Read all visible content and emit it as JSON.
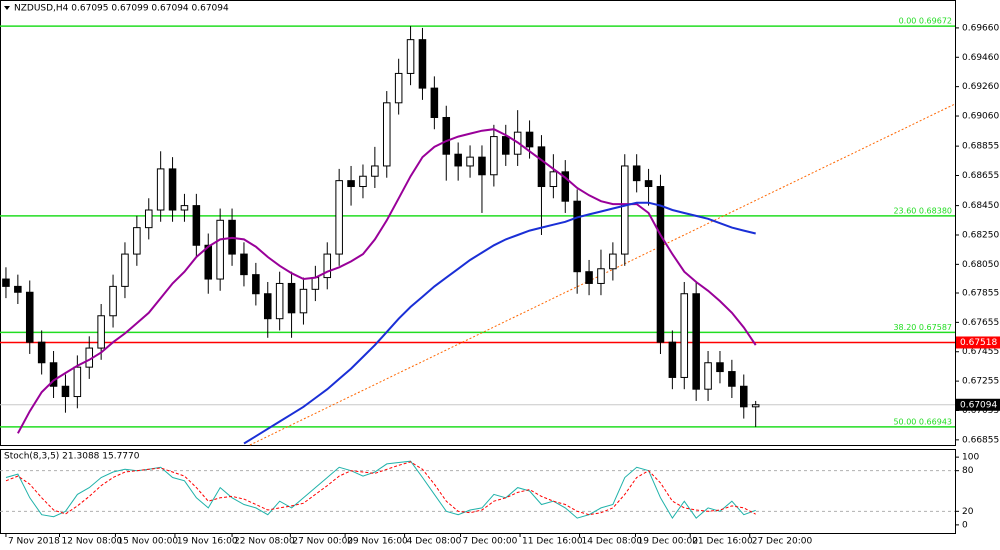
{
  "chart_data": {
    "type": "candlestick",
    "title": "NZDUSD,H4 0.67095 0.67099 0.67094 0.67094",
    "open": [
      0.6795,
      0.679,
      0.6786,
      0.6752,
      0.6738,
      0.6722,
      0.6715,
      0.6735,
      0.6748,
      0.677,
      0.679,
      0.6812,
      0.683,
      0.6842,
      0.687,
      0.6842,
      0.6845,
      0.6818,
      0.6795,
      0.6835,
      0.6812,
      0.6798,
      0.6785,
      0.6768,
      0.6792,
      0.6772,
      0.6788,
      0.6796,
      0.6812,
      0.6862,
      0.6858,
      0.6865,
      0.6872,
      0.6915,
      0.6935,
      0.6958,
      0.6925,
      0.6905,
      0.688,
      0.6872,
      0.6878,
      0.6866,
      0.6892,
      0.688,
      0.6895,
      0.6885,
      0.6858,
      0.6868,
      0.6848,
      0.68,
      0.6792,
      0.6802,
      0.6812,
      0.6872,
      0.6862,
      0.6858,
      0.6752,
      0.6728,
      0.6785,
      0.672,
      0.6738,
      0.6732,
      0.6722,
      0.6708
    ],
    "high": [
      0.6803,
      0.6798,
      0.6794,
      0.676,
      0.6746,
      0.673,
      0.6743,
      0.6756,
      0.6778,
      0.6798,
      0.682,
      0.6838,
      0.685,
      0.6882,
      0.6878,
      0.6853,
      0.6853,
      0.6826,
      0.6843,
      0.6843,
      0.682,
      0.6806,
      0.6793,
      0.68,
      0.68,
      0.6796,
      0.6804,
      0.682,
      0.687,
      0.6872,
      0.6873,
      0.6885,
      0.6923,
      0.6945,
      0.69672,
      0.6966,
      0.6933,
      0.6913,
      0.6888,
      0.6886,
      0.6886,
      0.69,
      0.69,
      0.691,
      0.6903,
      0.6893,
      0.688,
      0.6876,
      0.6856,
      0.6808,
      0.6815,
      0.682,
      0.688,
      0.688,
      0.687,
      0.6866,
      0.676,
      0.6793,
      0.6793,
      0.6746,
      0.6746,
      0.674,
      0.673,
      0.6712
    ],
    "low": [
      0.6782,
      0.6778,
      0.6744,
      0.673,
      0.6714,
      0.6704,
      0.6707,
      0.6727,
      0.674,
      0.6762,
      0.6782,
      0.6804,
      0.6822,
      0.6834,
      0.6834,
      0.6834,
      0.681,
      0.6785,
      0.6787,
      0.6804,
      0.679,
      0.6777,
      0.6755,
      0.676,
      0.6755,
      0.6764,
      0.678,
      0.6788,
      0.6804,
      0.6845,
      0.685,
      0.6857,
      0.6864,
      0.6907,
      0.6927,
      0.6917,
      0.6897,
      0.6862,
      0.6862,
      0.6864,
      0.684,
      0.6858,
      0.6872,
      0.6872,
      0.6877,
      0.6825,
      0.685,
      0.684,
      0.6785,
      0.6784,
      0.6784,
      0.6794,
      0.6804,
      0.6854,
      0.6845,
      0.6744,
      0.672,
      0.672,
      0.6712,
      0.6712,
      0.6724,
      0.6714,
      0.67,
      0.66943
    ],
    "close": [
      0.679,
      0.6786,
      0.6752,
      0.6738,
      0.6722,
      0.6715,
      0.6735,
      0.6748,
      0.677,
      0.679,
      0.6812,
      0.683,
      0.6842,
      0.687,
      0.6842,
      0.6845,
      0.6818,
      0.6795,
      0.6835,
      0.6812,
      0.6798,
      0.6785,
      0.6768,
      0.6792,
      0.6772,
      0.6788,
      0.6796,
      0.6812,
      0.6862,
      0.6858,
      0.6865,
      0.6872,
      0.6915,
      0.6935,
      0.6958,
      0.6925,
      0.6905,
      0.688,
      0.6872,
      0.6878,
      0.6866,
      0.6892,
      0.688,
      0.6895,
      0.6885,
      0.6858,
      0.6868,
      0.6848,
      0.68,
      0.6792,
      0.6802,
      0.6812,
      0.6872,
      0.6862,
      0.6858,
      0.6752,
      0.6728,
      0.6785,
      0.672,
      0.6738,
      0.6732,
      0.6722,
      0.6708,
      0.67094
    ],
    "up_color": "#ffffff",
    "down_color": "#000000",
    "xlim": [
      -0.5,
      79.75
    ],
    "xticks": [
      {
        "value": 0,
        "label": "7 Nov 2018"
      },
      {
        "value": 4.5,
        "label": "12 Nov 08:00"
      },
      {
        "value": 9.2,
        "label": "15 Nov 00:00"
      },
      {
        "value": 14.2,
        "label": "19 Nov 16:00"
      },
      {
        "value": 19,
        "label": "22 Nov 08:00"
      },
      {
        "value": 23.9,
        "label": "27 Nov 00:00"
      },
      {
        "value": 28.5,
        "label": "29 Nov 16:00"
      },
      {
        "value": 33.5,
        "label": "4 Dec 08:00"
      },
      {
        "value": 38.2,
        "label": "7 Dec 00:00"
      },
      {
        "value": 43.2,
        "label": "11 Dec 16:00"
      },
      {
        "value": 48.2,
        "label": "14 Dec 08:00"
      },
      {
        "value": 52.9,
        "label": "19 Dec 00:00"
      },
      {
        "value": 57.5,
        "label": "21 Dec 16:00"
      },
      {
        "value": 62.5,
        "label": "27 Dec 20:00"
      }
    ],
    "ylim": [
      0.6682,
      0.6985
    ],
    "yticks": [
      {
        "value": 0.6966,
        "label": "0.69660"
      },
      {
        "value": 0.6946,
        "label": "0.69460"
      },
      {
        "value": 0.6926,
        "label": "0.69260"
      },
      {
        "value": 0.6906,
        "label": "0.69060"
      },
      0.68855,
      0.68655,
      {
        "value": 0.6845,
        "label": "0.68450"
      },
      {
        "value": 0.6825,
        "label": "0.68250"
      },
      {
        "value": 0.6805,
        "label": "0.68050"
      },
      0.67855,
      0.67655,
      0.67455,
      0.67255,
      0.67055,
      0.66855
    ],
    "lines": [
      {
        "color": "#990099",
        "values": [
          null,
          0.669,
          0.6705,
          0.6718,
          0.6726,
          0.6731,
          0.6736,
          0.674,
          0.6745,
          0.6752,
          0.6758,
          0.6765,
          0.6772,
          0.6782,
          0.6792,
          0.68,
          0.681,
          0.6817,
          0.6822,
          0.6823,
          0.6822,
          0.6817,
          0.681,
          0.6804,
          0.6799,
          0.6795,
          0.6796,
          0.68,
          0.6803,
          0.6807,
          0.6812,
          0.6822,
          0.6835,
          0.685,
          0.6865,
          0.6878,
          0.6885,
          0.6889,
          0.6892,
          0.6894,
          0.6896,
          0.6897,
          0.6893,
          0.6888,
          0.6882,
          0.6876,
          0.687,
          0.6864,
          0.6857,
          0.6852,
          0.6848,
          0.6846,
          0.6846,
          0.6846,
          0.684,
          0.6825,
          0.6812,
          0.68,
          0.6793,
          0.6787,
          0.678,
          0.6772,
          0.6762,
          0.675
        ]
      },
      {
        "color": "#1a2fd6",
        "values": [
          null,
          null,
          null,
          null,
          null,
          null,
          null,
          null,
          null,
          null,
          null,
          null,
          null,
          null,
          null,
          null,
          null,
          null,
          null,
          null,
          0.6683,
          0.6688,
          0.6693,
          0.6698,
          0.6703,
          0.6708,
          0.6714,
          0.672,
          0.6727,
          0.6734,
          0.6742,
          0.675,
          0.6759,
          0.6768,
          0.6776,
          0.6783,
          0.679,
          0.6796,
          0.6802,
          0.6808,
          0.6813,
          0.6818,
          0.6822,
          0.6825,
          0.6828,
          0.683,
          0.6832,
          0.6834,
          0.6837,
          0.6839,
          0.6841,
          0.6843,
          0.6845,
          0.6847,
          0.6847,
          0.6845,
          0.6842,
          0.684,
          0.6838,
          0.6836,
          0.6833,
          0.683,
          0.6828,
          0.6826
        ]
      }
    ],
    "levels": [
      {
        "value": 0.69672,
        "label": "0.00 0.69672",
        "color": "#22dd22"
      },
      {
        "value": 0.6838,
        "label": "23.60 0.68380",
        "color": "#22dd22"
      },
      {
        "value": 0.67587,
        "label": "38.20 0.67587",
        "color": "#22dd22"
      },
      {
        "value": 0.66943,
        "label": "50.00 0.66943",
        "color": "#22dd22"
      }
    ],
    "price_tags": [
      {
        "value": 0.67518,
        "color": "#ff0000"
      },
      {
        "value": 0.67094,
        "color": "#000000"
      }
    ],
    "trendline": {
      "x": [
        20.5,
        79.7
      ],
      "y": [
        0.6682,
        0.6914
      ],
      "color": "#ff6600"
    },
    "stochastic": {
      "title": "Stoch(8,3,5) 21.3088 15.7770",
      "ylim": [
        -12,
        112
      ],
      "yticks": [
        100,
        80,
        20,
        0
      ],
      "levels": [
        80,
        20
      ],
      "series": [
        {
          "color": "#20b2aa",
          "values": [
            70,
            75,
            40,
            15,
            12,
            20,
            45,
            55,
            70,
            78,
            82,
            80,
            82,
            85,
            70,
            65,
            40,
            25,
            55,
            40,
            30,
            25,
            15,
            35,
            25,
            40,
            55,
            70,
            85,
            80,
            72,
            78,
            90,
            92,
            94,
            70,
            45,
            20,
            15,
            22,
            25,
            45,
            40,
            55,
            50,
            30,
            35,
            25,
            10,
            15,
            25,
            30,
            70,
            85,
            80,
            40,
            10,
            35,
            10,
            25,
            20,
            35,
            15,
            21.3088
          ]
        },
        {
          "color": "#ff0000",
          "dash": true,
          "values": [
            65,
            72,
            60,
            40,
            22,
            16,
            28,
            42,
            58,
            70,
            78,
            80,
            82,
            84,
            78,
            72,
            55,
            35,
            40,
            42,
            38,
            30,
            22,
            25,
            28,
            32,
            45,
            58,
            72,
            80,
            78,
            76,
            82,
            88,
            93,
            82,
            60,
            35,
            20,
            18,
            22,
            35,
            40,
            48,
            52,
            42,
            35,
            30,
            20,
            15,
            18,
            25,
            45,
            70,
            80,
            62,
            35,
            25,
            22,
            20,
            22,
            28,
            25,
            15.777
          ]
        }
      ]
    }
  }
}
